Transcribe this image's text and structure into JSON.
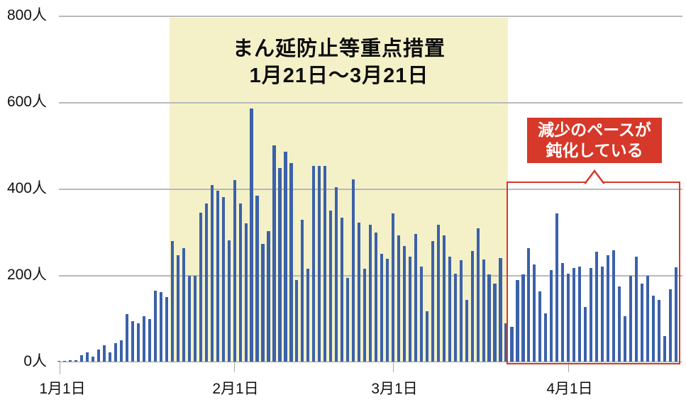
{
  "chart_data": {
    "type": "bar",
    "unit": "人",
    "ylim": [
      0,
      800
    ],
    "yticks": [
      "0人",
      "200人",
      "400人",
      "600人",
      "800人"
    ],
    "xticks": [
      "1月1日",
      "2月1日",
      "3月1日",
      "4月1日"
    ],
    "month_lengths": [
      31,
      28,
      31,
      20
    ],
    "grid": true,
    "legend": "none",
    "bar_color": "#3b61a9",
    "grid_color": "#b9b9b9",
    "axis_color": "#a0a0a0",
    "values": [
      2,
      2,
      3,
      3,
      15,
      22,
      12,
      28,
      37,
      21,
      43,
      50,
      110,
      94,
      89,
      105,
      98,
      164,
      160,
      150,
      279,
      246,
      262,
      198,
      198,
      345,
      365,
      409,
      395,
      381,
      280,
      420,
      366,
      319,
      585,
      384,
      272,
      302,
      500,
      447,
      486,
      459,
      188,
      328,
      215,
      453,
      453,
      453,
      349,
      404,
      332,
      194,
      421,
      321,
      215,
      316,
      299,
      250,
      237,
      342,
      291,
      268,
      242,
      295,
      220,
      117,
      279,
      316,
      291,
      242,
      203,
      234,
      142,
      256,
      309,
      236,
      201,
      180,
      239,
      88,
      80,
      189,
      201,
      263,
      225,
      163,
      112,
      212,
      342,
      228,
      203,
      216,
      220,
      127,
      216,
      254,
      220,
      246,
      258,
      173,
      105,
      198,
      242,
      180,
      198,
      153,
      142,
      59,
      167,
      218
    ],
    "highlight_band": {
      "label_line1": "まん延防止等重点措置",
      "label_line2": "1月21日〜3月21日",
      "start_day_index": 20,
      "end_day_index": 79,
      "color": "#f4f1c8"
    },
    "callout": {
      "label_line1": "減少のペースが",
      "label_line2": "鈍化している",
      "start_day_index": 80,
      "end_day_index": 109,
      "color": "#d63829",
      "text_color": "#ffffff"
    }
  }
}
